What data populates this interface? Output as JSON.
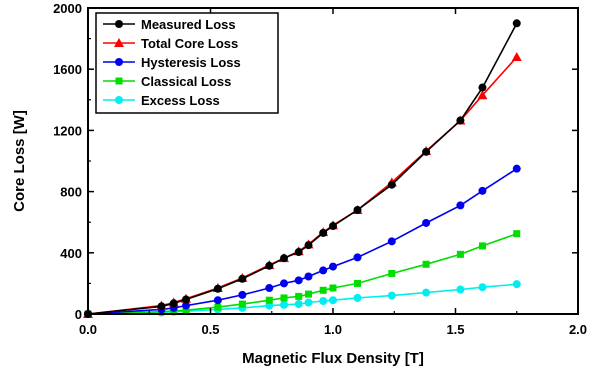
{
  "chart_data": {
    "type": "line",
    "title": "",
    "xlabel": "Magnetic Flux Density [T]",
    "ylabel": "Core Loss [W]",
    "xlim": [
      0.0,
      2.0
    ],
    "ylim": [
      0,
      2000
    ],
    "x_ticks": [
      "0.0",
      "0.5",
      "1.0",
      "1.5",
      "2.0"
    ],
    "y_ticks": [
      "0",
      "400",
      "800",
      "1200",
      "1600",
      "2000"
    ],
    "grid": false,
    "legend_position": "top-left",
    "series": [
      {
        "name": "Measured Loss",
        "color": "#000000",
        "marker": "circle",
        "x": [
          0.0,
          0.3,
          0.35,
          0.4,
          0.53,
          0.63,
          0.74,
          0.8,
          0.86,
          0.9,
          0.96,
          1.0,
          1.1,
          1.24,
          1.38,
          1.52,
          1.61,
          1.75
        ],
        "y": [
          0,
          50,
          70,
          95,
          165,
          230,
          315,
          365,
          405,
          450,
          530,
          575,
          680,
          845,
          1060,
          1265,
          1480,
          1900
        ]
      },
      {
        "name": "Total Core Loss",
        "color": "#ff0000",
        "marker": "triangle",
        "x": [
          0.0,
          0.3,
          0.35,
          0.4,
          0.53,
          0.63,
          0.74,
          0.8,
          0.86,
          0.9,
          0.96,
          1.0,
          1.1,
          1.24,
          1.38,
          1.52,
          1.61,
          1.75
        ],
        "y": [
          0,
          55,
          75,
          100,
          170,
          235,
          320,
          365,
          410,
          455,
          535,
          580,
          680,
          860,
          1065,
          1265,
          1430,
          1680
        ]
      },
      {
        "name": "Hysteresis Loss",
        "color": "#0000ee",
        "marker": "circle",
        "x": [
          0.0,
          0.3,
          0.35,
          0.4,
          0.53,
          0.63,
          0.74,
          0.8,
          0.86,
          0.9,
          0.96,
          1.0,
          1.1,
          1.24,
          1.38,
          1.52,
          1.61,
          1.75
        ],
        "y": [
          0,
          30,
          40,
          55,
          90,
          125,
          170,
          200,
          220,
          245,
          285,
          310,
          370,
          475,
          595,
          710,
          805,
          950
        ]
      },
      {
        "name": "Classical Loss",
        "color": "#00dd00",
        "marker": "square",
        "x": [
          0.0,
          0.3,
          0.35,
          0.4,
          0.53,
          0.63,
          0.74,
          0.8,
          0.86,
          0.9,
          0.96,
          1.0,
          1.1,
          1.24,
          1.38,
          1.52,
          1.61,
          1.75
        ],
        "y": [
          0,
          15,
          20,
          25,
          45,
          65,
          90,
          105,
          115,
          130,
          155,
          170,
          200,
          265,
          325,
          390,
          445,
          525
        ]
      },
      {
        "name": "Excess Loss",
        "color": "#00eeee",
        "marker": "circle",
        "x": [
          0.0,
          0.3,
          0.35,
          0.4,
          0.53,
          0.63,
          0.74,
          0.8,
          0.86,
          0.9,
          0.96,
          1.0,
          1.1,
          1.24,
          1.38,
          1.52,
          1.61,
          1.75
        ],
        "y": [
          0,
          10,
          15,
          18,
          30,
          40,
          55,
          60,
          65,
          75,
          85,
          90,
          105,
          120,
          140,
          160,
          175,
          195
        ]
      }
    ]
  }
}
